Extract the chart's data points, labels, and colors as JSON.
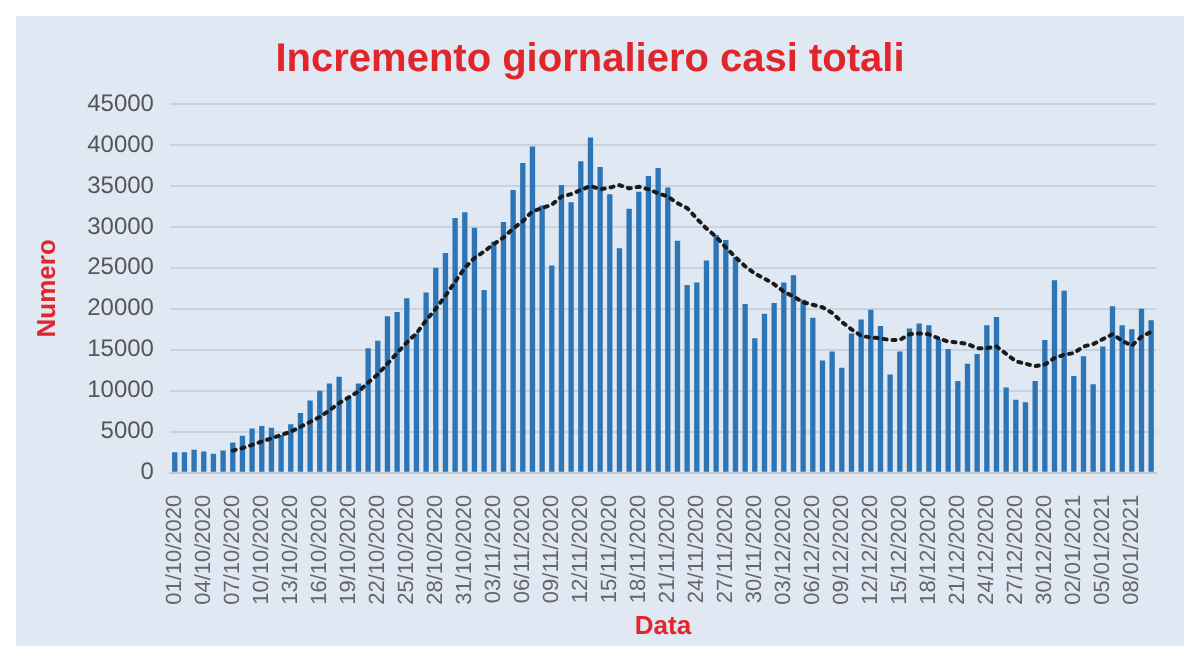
{
  "chart_data": {
    "type": "bar",
    "title": "Incremento giornaliero casi totali",
    "xlabel": "Data",
    "ylabel": "Numero",
    "categories": [
      "01/10/2020",
      null,
      null,
      "04/10/2020",
      null,
      null,
      "07/10/2020",
      null,
      null,
      "10/10/2020",
      null,
      null,
      "13/10/2020",
      null,
      null,
      "16/10/2020",
      null,
      null,
      "19/10/2020",
      null,
      null,
      "22/10/2020",
      null,
      null,
      "25/10/2020",
      null,
      null,
      "28/10/2020",
      null,
      null,
      "31/10/2020",
      null,
      null,
      "03/11/2020",
      null,
      null,
      "06/11/2020",
      null,
      null,
      "09/11/2020",
      null,
      null,
      "12/11/2020",
      null,
      null,
      "15/11/2020",
      null,
      null,
      "18/11/2020",
      null,
      null,
      "21/11/2020",
      null,
      null,
      "24/11/2020",
      null,
      null,
      "27/11/2020",
      null,
      null,
      "30/11/2020",
      null,
      null,
      "03/12/2020",
      null,
      null,
      "06/12/2020",
      null,
      null,
      "09/12/2020",
      null,
      null,
      "12/12/2020",
      null,
      null,
      "15/12/2020",
      null,
      null,
      "18/12/2020",
      null,
      null,
      "21/12/2020",
      null,
      null,
      "24/12/2020",
      null,
      null,
      "27/12/2020",
      null,
      null,
      "30/12/2020",
      null,
      null,
      "02/01/2021",
      null,
      null,
      "05/01/2021",
      null,
      null,
      "08/01/2021",
      null,
      null
    ],
    "series": [
      {
        "color": "#2e75b6",
        "values": [
          2500,
          2500,
          2800,
          2600,
          2300,
          2700,
          3700,
          4500,
          5400,
          5700,
          5500,
          4600,
          5900,
          7300,
          8800,
          10000,
          10900,
          11700,
          9300,
          10900,
          15200,
          16100,
          19100,
          19600,
          21300,
          17000,
          22000,
          25000,
          26800,
          31100,
          31800,
          29900,
          22300,
          28200,
          30600,
          34500,
          37800,
          39800,
          32600,
          25300,
          35100,
          33000,
          38000,
          40900,
          37300,
          34000,
          27400,
          32200,
          34300,
          36200,
          37200,
          34800,
          28300,
          22900,
          23200,
          25900,
          29000,
          28400,
          26300,
          20600,
          16400,
          19400,
          20700,
          23200,
          24100,
          21100,
          18900,
          13700,
          14800,
          12800,
          17000,
          18700,
          19900,
          17900,
          12000,
          14800,
          17600,
          18200,
          18000,
          16300,
          15100,
          11200,
          13300,
          14500,
          18000,
          19000,
          10400,
          8900,
          8600,
          11200,
          16200,
          23500,
          22200,
          11800,
          14200,
          10800,
          15400,
          20300,
          18000,
          17500,
          20000,
          18600
        ]
      },
      {
        "type": "line",
        "color": "#1a1a1a",
        "line_style": "dotted",
        "marker": "none",
        "values": [
          null,
          null,
          null,
          null,
          null,
          null,
          2700,
          3000,
          3400,
          3800,
          4200,
          4600,
          5000,
          5600,
          6200,
          6800,
          7600,
          8500,
          9200,
          9900,
          11000,
          12000,
          13300,
          14600,
          15900,
          17000,
          18600,
          20000,
          21600,
          23300,
          25000,
          26200,
          27000,
          27900,
          28700,
          29800,
          30700,
          31900,
          32300,
          32700,
          33700,
          34000,
          34500,
          35000,
          34600,
          34800,
          35100,
          34700,
          34900,
          34600,
          34100,
          33700,
          32900,
          32300,
          31000,
          29800,
          28800,
          27500,
          26300,
          25200,
          24300,
          23700,
          23000,
          22100,
          21500,
          20800,
          20500,
          20200,
          19500,
          18400,
          17500,
          16700,
          16500,
          16400,
          16200,
          16200,
          16900,
          17000,
          16900,
          16400,
          16000,
          15900,
          15700,
          15200,
          15200,
          15400,
          14500,
          13600,
          13300,
          13000,
          13200,
          14000,
          14400,
          14600,
          15400,
          15700,
          16300,
          16900,
          16100,
          15500,
          16600,
          17200
        ]
      }
    ],
    "ylim": [
      0,
      45000
    ],
    "yticks": [
      0,
      5000,
      10000,
      15000,
      20000,
      25000,
      30000,
      35000,
      40000,
      45000
    ],
    "grid": "y"
  }
}
